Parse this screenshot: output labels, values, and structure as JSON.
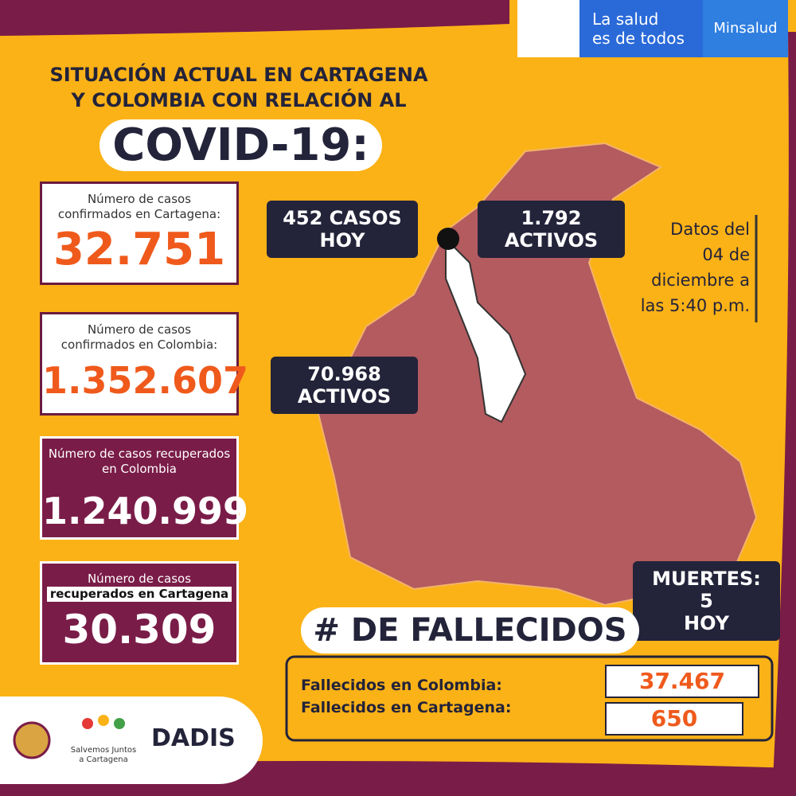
{
  "header": {
    "brand": [
      "La salud",
      "es de todos"
    ],
    "ministry": "Minsalud"
  },
  "title": {
    "lines": [
      "SITUACIÓN ACTUAL EN CARTAGENA",
      "Y COLOMBIA CON RELACIÓN AL"
    ],
    "headline": "COVID-19:"
  },
  "cards": [
    {
      "label": [
        "Número de casos",
        "confirmados en Cartagena:"
      ],
      "value": "32.751"
    },
    {
      "label": [
        "Número de casos",
        "confirmados en Colombia:"
      ],
      "value": "1.352.607"
    },
    {
      "label": [
        "Número de casos recuperados",
        "en Colombia"
      ],
      "value": "1.240.999"
    },
    {
      "label": [
        "Número de casos",
        "recuperados en Cartagena"
      ],
      "value": "30.309"
    }
  ],
  "tags": [
    {
      "lines": [
        "452 CASOS",
        "HOY"
      ]
    },
    {
      "lines": [
        "1.792",
        "ACTIVOS"
      ]
    },
    {
      "lines": [
        "70.968",
        "ACTIVOS"
      ]
    }
  ],
  "date_note": [
    "Datos del",
    "04 de",
    "diciembre a",
    "las 5:40 p.m."
  ],
  "deaths": {
    "today": [
      "MUERTES: 5",
      "HOY"
    ],
    "heading": "# DE FALLECIDOS",
    "rows": [
      {
        "label": "Fallecidos en Colombia:",
        "value": "37.467"
      },
      {
        "label": "Fallecidos en Cartagena:",
        "value": "650"
      }
    ]
  },
  "footer": {
    "campaign": [
      "Salvemos Juntos",
      "a Cartagena"
    ],
    "agency": "DADIS"
  }
}
